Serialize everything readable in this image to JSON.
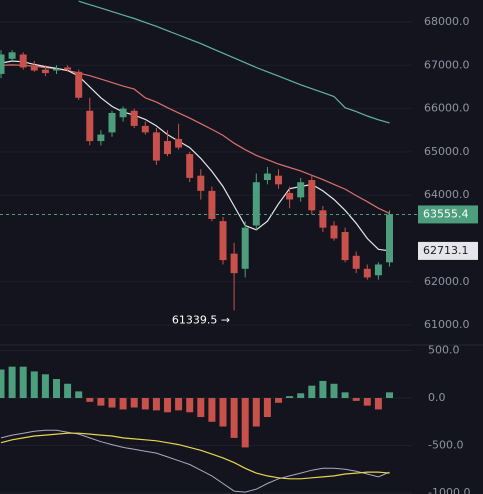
{
  "chart_data": {
    "type": "candlestick",
    "open": [
      66800,
      67150,
      67250,
      67000,
      66900,
      66880,
      66950,
      66850,
      65950,
      65250,
      65450,
      65800,
      65950,
      65600,
      65450,
      65250,
      65300,
      64950,
      64450,
      64100,
      63400,
      62650,
      62300,
      63300,
      64350,
      64450,
      64050,
      63950,
      64350,
      63650,
      63300,
      63150,
      62600,
      62300,
      62150,
      62450
    ],
    "high": [
      67350,
      67350,
      67300,
      67100,
      67000,
      67000,
      67000,
      66900,
      66250,
      65500,
      65950,
      66050,
      66000,
      65700,
      65550,
      65500,
      65650,
      65000,
      64600,
      64200,
      63500,
      62900,
      63400,
      64500,
      64650,
      64600,
      64200,
      64400,
      64450,
      63750,
      63400,
      63250,
      62700,
      62400,
      62450,
      63650
    ],
    "low": [
      66700,
      67100,
      66900,
      66850,
      66750,
      66800,
      66850,
      66200,
      65150,
      65150,
      65350,
      65700,
      65550,
      65400,
      64700,
      64900,
      65050,
      64300,
      63900,
      63400,
      62400,
      61339.5,
      62100,
      63200,
      64250,
      64150,
      63700,
      63850,
      63550,
      63150,
      62950,
      62450,
      62200,
      62050,
      62050,
      62350
    ],
    "close": [
      67250,
      67300,
      66950,
      66880,
      66820,
      66920,
      66900,
      66250,
      65250,
      65400,
      65900,
      66000,
      65600,
      65450,
      64800,
      64950,
      65100,
      64400,
      64100,
      63450,
      62500,
      62200,
      63250,
      64300,
      64500,
      64250,
      63900,
      64300,
      63650,
      63250,
      63000,
      62500,
      62300,
      62100,
      62400,
      63555.4
    ],
    "up_color": "#4c9e7c",
    "down_color": "#c9514b",
    "ma": [
      {
        "color": "#5fb3a9",
        "values": [
          null,
          null,
          null,
          null,
          null,
          null,
          null,
          68480,
          68400,
          68320,
          68240,
          68160,
          68080,
          67990,
          67900,
          67800,
          67700,
          67600,
          67500,
          67390,
          67280,
          67170,
          67060,
          66950,
          66850,
          66750,
          66650,
          66550,
          66460,
          66370,
          66280,
          66020,
          65930,
          65830,
          65740,
          65670
        ]
      },
      {
        "color": "#d9706c",
        "values": [
          67000,
          67010,
          67000,
          66980,
          66950,
          66920,
          66880,
          66820,
          66760,
          66680,
          66600,
          66520,
          66450,
          66250,
          66150,
          66020,
          65900,
          65780,
          65650,
          65520,
          65380,
          65200,
          65050,
          64920,
          64820,
          64720,
          64640,
          64560,
          64460,
          64360,
          64250,
          64140,
          63990,
          63850,
          63700,
          63580
        ]
      },
      {
        "color": "#e6e6ea",
        "values": [
          67050,
          67100,
          67080,
          67020,
          66970,
          66930,
          66880,
          66750,
          66500,
          66250,
          66050,
          65920,
          65850,
          65750,
          65600,
          65400,
          65250,
          65100,
          64850,
          64550,
          64200,
          63750,
          63300,
          63200,
          63400,
          63800,
          64150,
          64200,
          64250,
          64100,
          63900,
          63650,
          63350,
          63000,
          62750,
          62713.1
        ]
      }
    ],
    "ylim": [
      60540,
      68508
    ],
    "yticks": [
      {
        "value": 61000,
        "label": "61000.0"
      },
      {
        "value": 62000,
        "label": "62000.0"
      },
      {
        "value": 64000,
        "label": "64000.0"
      },
      {
        "value": 65000,
        "label": "65000.0"
      },
      {
        "value": 66000,
        "label": "66000.0"
      },
      {
        "value": 67000,
        "label": "67000.0"
      },
      {
        "value": 68000,
        "label": "68000.0"
      }
    ],
    "last_price": 63555.4,
    "ma_price": 62713.1,
    "low_annotation": {
      "value": 61339.5,
      "label": "61339.5 →"
    },
    "grid": true,
    "macd": {
      "histogram": [
        300,
        330,
        330,
        280,
        250,
        200,
        150,
        70,
        -40,
        -80,
        -100,
        -120,
        -100,
        -120,
        -130,
        -150,
        -130,
        -150,
        -200,
        -250,
        -300,
        -420,
        -520,
        -300,
        -200,
        -50,
        20,
        50,
        130,
        180,
        150,
        60,
        -30,
        -80,
        -120,
        60
      ],
      "dif": {
        "color": "#a9a9c4",
        "values": [
          -420,
          -390,
          -370,
          -350,
          -340,
          -340,
          -360,
          -380,
          -420,
          -460,
          -490,
          -520,
          -540,
          -560,
          -580,
          -620,
          -660,
          -700,
          -760,
          -820,
          -900,
          -980,
          -990,
          -960,
          -900,
          -850,
          -820,
          -790,
          -760,
          -740,
          -740,
          -750,
          -770,
          -800,
          -830,
          -780
        ]
      },
      "dea": {
        "color": "#e8d44d",
        "values": [
          -470,
          -440,
          -420,
          -400,
          -390,
          -380,
          -370,
          -370,
          -380,
          -390,
          -400,
          -420,
          -430,
          -440,
          -450,
          -470,
          -490,
          -520,
          -550,
          -590,
          -630,
          -680,
          -740,
          -790,
          -820,
          -840,
          -850,
          -850,
          -840,
          -830,
          -820,
          -800,
          -790,
          -780,
          -780,
          -790
        ]
      },
      "ylim": [
        -1010,
        558
      ],
      "yticks": [
        {
          "value": 500,
          "label": "500.0"
        },
        {
          "value": 0,
          "label": "0.0"
        },
        {
          "value": -500,
          "label": "-500.0"
        },
        {
          "value": -1000,
          "label": "-1000.0"
        }
      ]
    }
  }
}
